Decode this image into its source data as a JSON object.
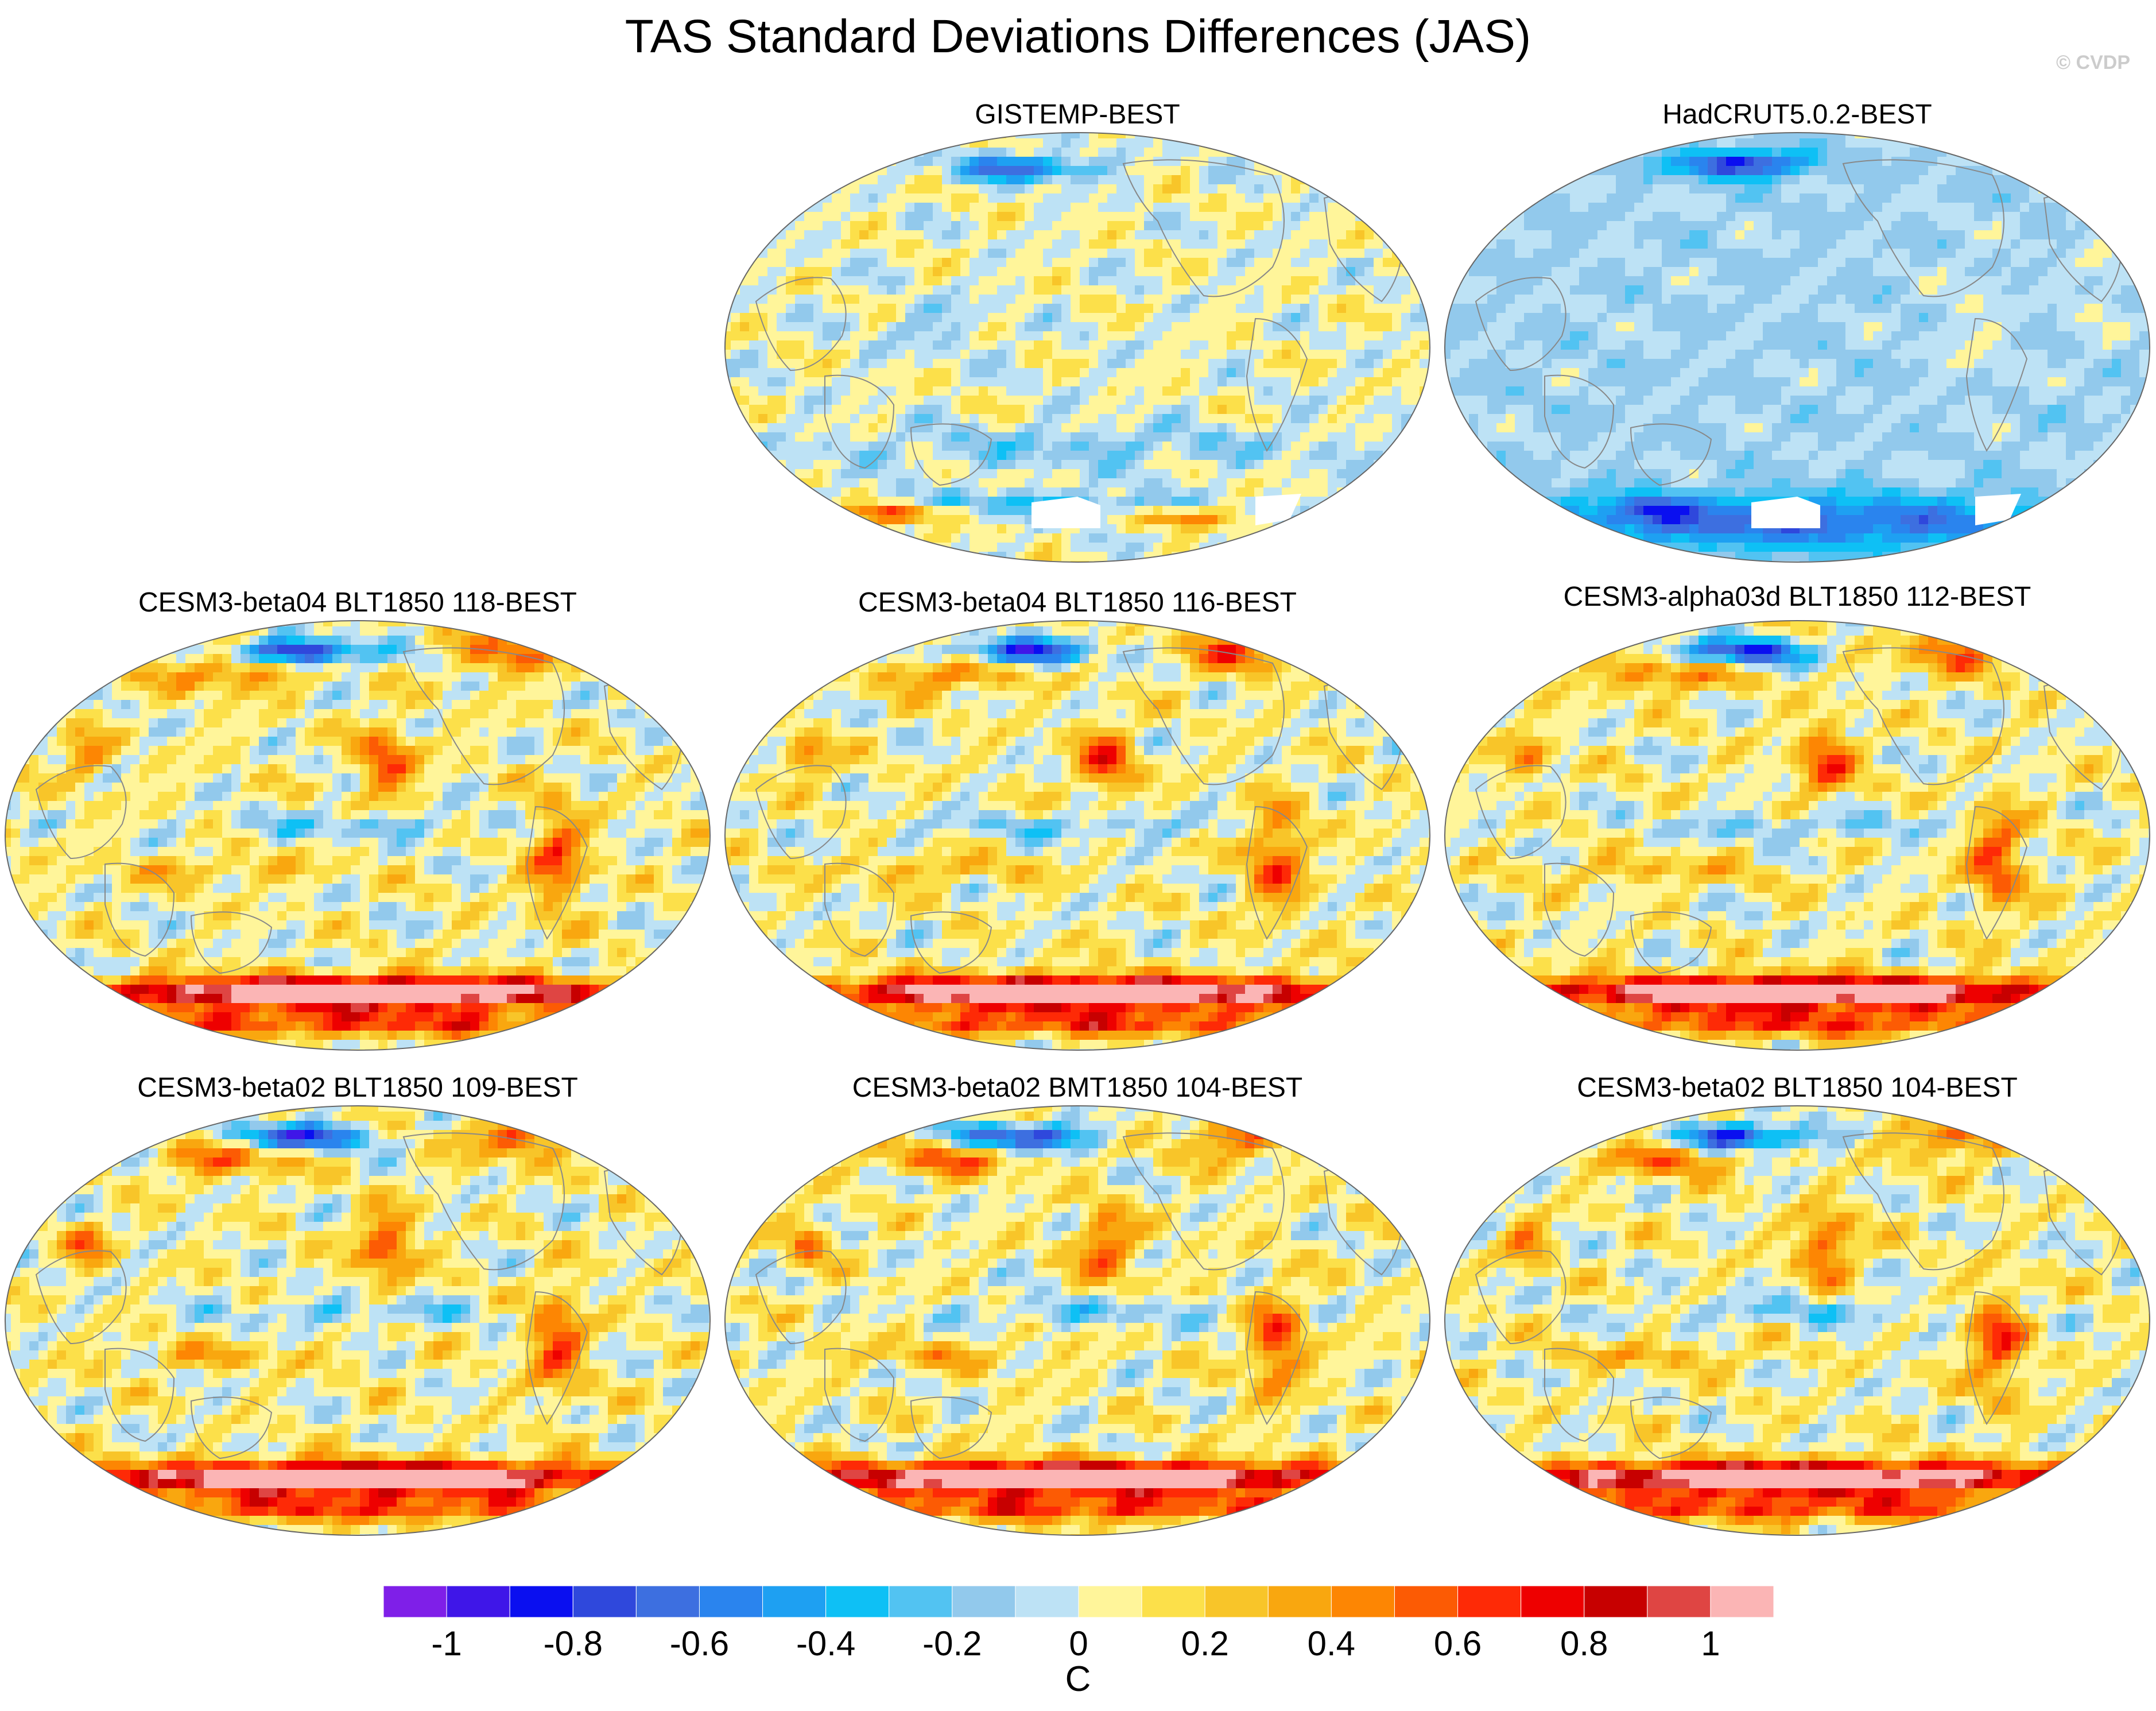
{
  "title": "TAS Standard Deviations Differences (JAS)",
  "copyright": "© CVDP",
  "colors": {
    "palette": [
      "#7f1fe8",
      "#3f16e8",
      "#0a0ff0",
      "#2f48dc",
      "#3d6fe0",
      "#2a84ee",
      "#1ea0f2",
      "#0ec0f5",
      "#52c3f2",
      "#92c9ec",
      "#bde2f5",
      "#fff59a",
      "#fce04a",
      "#f8c529",
      "#f9a70f",
      "#fd8603",
      "#fc5b04",
      "#fe2a06",
      "#ee0000",
      "#c70000",
      "#df4543",
      "#fbb5b5"
    ],
    "land_outline": "#888888",
    "missing": "#ffffff"
  },
  "panels": [
    {
      "id": "gistemp",
      "title": "GISTEMP-BEST",
      "pattern": "obs1"
    },
    {
      "id": "hadcrut",
      "title": "HadCRUT5.0.2-BEST",
      "pattern": "obs2"
    },
    {
      "id": "m118",
      "title": "CESM3-beta04 BLT1850 118-BEST",
      "pattern": "model"
    },
    {
      "id": "m116",
      "title": "CESM3-beta04 BLT1850 116-BEST",
      "pattern": "model"
    },
    {
      "id": "m112",
      "title": "CESM3-alpha03d BLT1850 112-BEST",
      "pattern": "model"
    },
    {
      "id": "m109",
      "title": "CESM3-beta02 BLT1850 109-BEST",
      "pattern": "model"
    },
    {
      "id": "m104bmt",
      "title": "CESM3-beta02 BMT1850 104-BEST",
      "pattern": "model"
    },
    {
      "id": "m104blt",
      "title": "CESM3-beta02 BLT1850 104-BEST",
      "pattern": "model"
    }
  ],
  "colorbar": {
    "ticks": [
      "-1",
      "-0.8",
      "-0.6",
      "-0.4",
      "-0.2",
      "0",
      "0.2",
      "0.4",
      "0.6",
      "0.8",
      "1"
    ],
    "units": "C"
  }
}
